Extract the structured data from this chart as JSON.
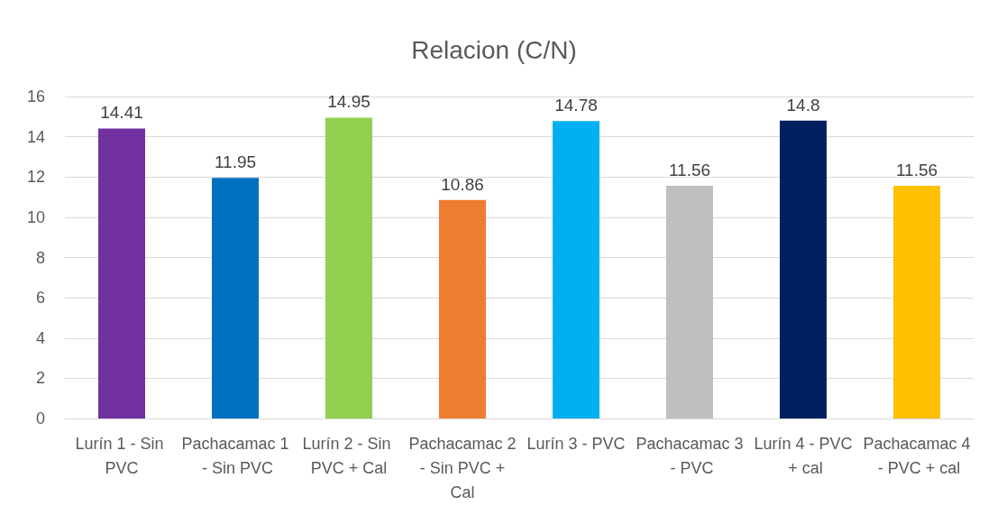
{
  "chart_data": {
    "type": "bar",
    "title": "Relacion (C/N)",
    "categories": [
      "Lurín 1 - Sin PVC",
      "Pachacamac 1 - Sin PVC",
      "Lurín 2 - Sin PVC + Cal",
      "Pachacamac 2 - Sin PVC + Cal",
      "Lurín 3 - PVC",
      "Pachacamac 3 - PVC",
      "Lurín 4 - PVC + cal",
      "Pachacamac 4 - PVC + cal"
    ],
    "values": [
      14.41,
      11.95,
      14.95,
      10.86,
      14.78,
      11.56,
      14.8,
      11.56
    ],
    "colors": [
      "#7030a0",
      "#0070c0",
      "#92d050",
      "#ed7d31",
      "#00b0f0",
      "#bfbfbf",
      "#002060",
      "#ffc000"
    ],
    "ylim": [
      0,
      16
    ],
    "yticks": [
      0,
      2,
      4,
      6,
      8,
      10,
      12,
      14,
      16
    ],
    "grid": "y",
    "data_labels": true
  }
}
